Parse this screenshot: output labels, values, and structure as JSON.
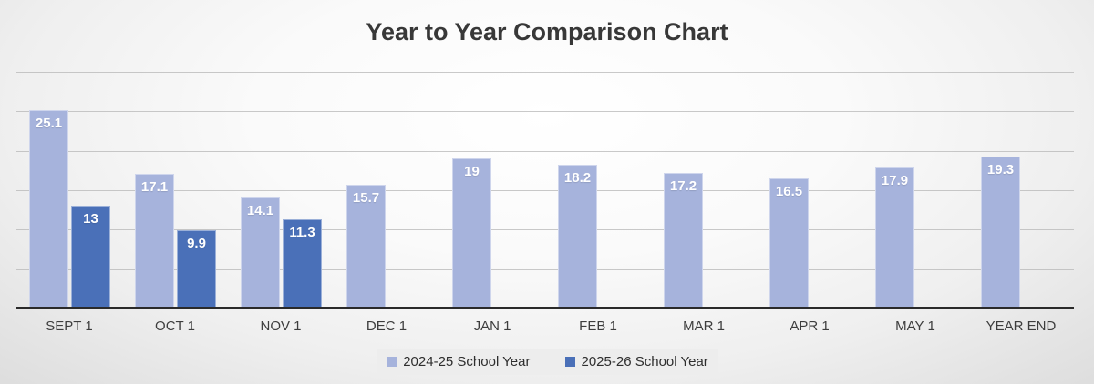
{
  "title": "Year to Year Comparison Chart",
  "chart_data": {
    "type": "bar",
    "title": "Year to Year Comparison Chart",
    "categories": [
      "SEPT 1",
      "OCT 1",
      "NOV 1",
      "DEC 1",
      "JAN 1",
      "FEB 1",
      "MAR 1",
      "APR 1",
      "MAY 1",
      "YEAR END"
    ],
    "series": [
      {
        "name": "2024-25 School Year",
        "color": "#a6b3dc",
        "values": [
          25.1,
          17.1,
          14.1,
          15.7,
          19,
          18.2,
          17.2,
          16.5,
          17.9,
          19.3
        ]
      },
      {
        "name": "2025-26 School Year",
        "color": "#4a70b8",
        "values": [
          13,
          9.9,
          11.3,
          null,
          null,
          null,
          null,
          null,
          null,
          null
        ]
      }
    ],
    "xlabel": "",
    "ylabel": "",
    "ylim": [
      0,
      30
    ],
    "ytick_interval": 5,
    "ytick_labels_visible": false,
    "grid": "horizontal",
    "value_labels": "inside-top",
    "legend_position": "bottom"
  },
  "colors": {
    "series_light": "#a6b3dc",
    "series_dark": "#4a70b8",
    "gridline": "#b7b7b7",
    "axis_line": "#2a2a2a",
    "title_text": "#383838",
    "axis_label_text": "#3d3d3d",
    "value_label_text": "#ffffff",
    "legend_background": "#ededed"
  }
}
